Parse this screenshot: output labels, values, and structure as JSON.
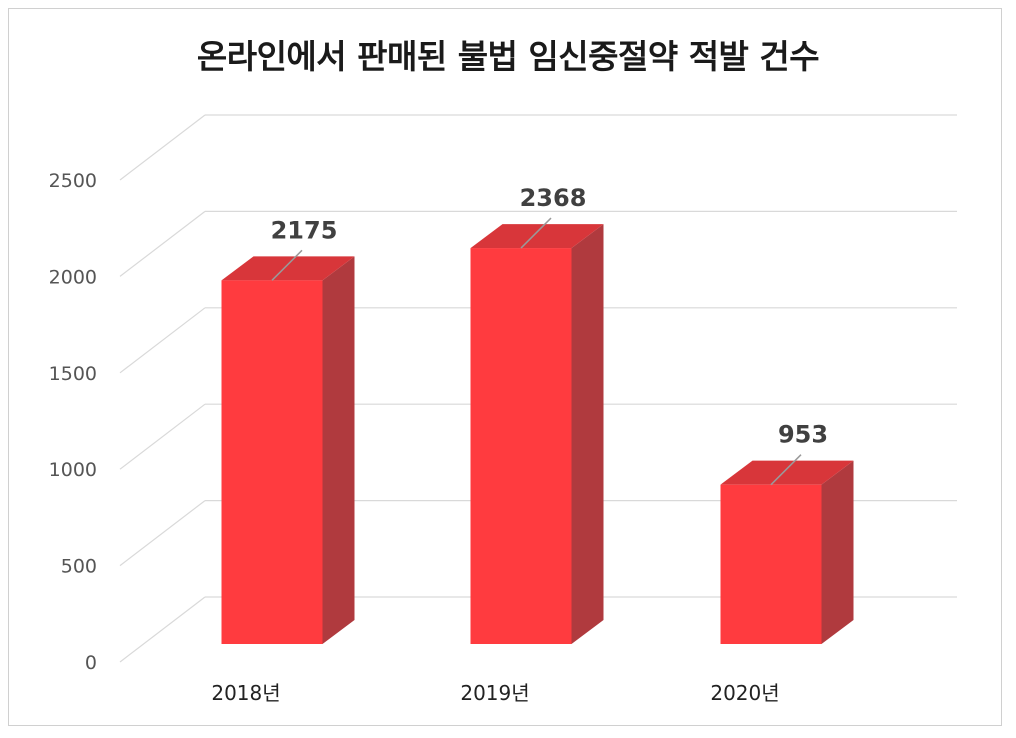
{
  "chart_data": {
    "type": "bar",
    "title": "온라인에서 판매된 불법 임신중절약 적발 건수",
    "categories": [
      "2018년",
      "2019년",
      "2020년"
    ],
    "values": [
      2175,
      2368,
      953
    ],
    "data_labels": [
      "2175",
      "2368",
      "953"
    ],
    "y_ticks": [
      "0",
      "500",
      "1000",
      "1500",
      "2000",
      "2500"
    ],
    "ylim": [
      0,
      2500
    ],
    "xlabel": "",
    "ylabel": "",
    "grid": true,
    "legend": "none",
    "colors": {
      "bar_front": "#ff3b3f",
      "bar_side": "#b03a3e",
      "bar_top": "#d8363a"
    }
  }
}
